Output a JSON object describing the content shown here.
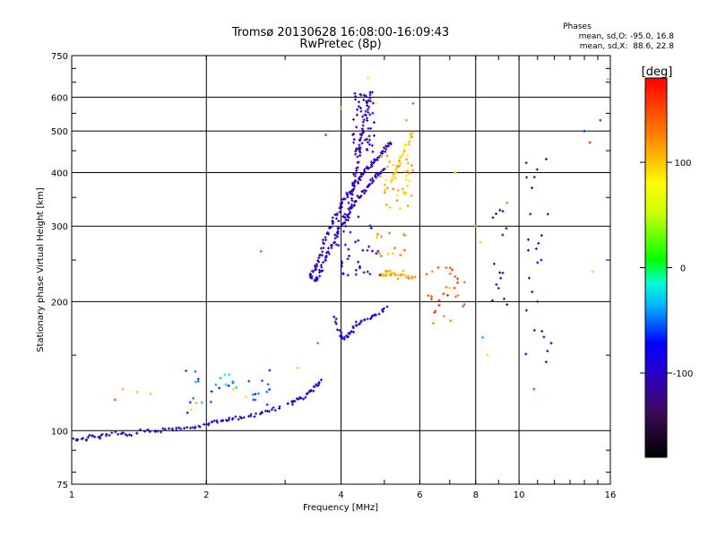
{
  "chart_data": {
    "type": "scatter",
    "title": "Tromsø 20130628 16:08:00-16:09:43",
    "subtitle": "RwPretec (8p)",
    "xlabel": "Frequency [MHz]",
    "ylabel": "Stationary phase Virtual Height [km]",
    "x_scale": "log",
    "y_scale": "log",
    "xlim": [
      1,
      16
    ],
    "ylim": [
      75,
      750
    ],
    "x_ticks": [
      1,
      2,
      4,
      6,
      8,
      10,
      16
    ],
    "x_tick_labels": [
      "1",
      "2",
      "4",
      "6",
      "8",
      "10",
      "16"
    ],
    "y_ticks": [
      75,
      100,
      200,
      300,
      400,
      500,
      600,
      750
    ],
    "y_tick_labels": [
      "75",
      "100",
      "200",
      "300",
      "400",
      "500",
      "600",
      "750"
    ],
    "grid": true,
    "colorbar": {
      "label": "[deg]",
      "range": [
        -180,
        180
      ],
      "ticks": [
        100,
        0,
        -100
      ],
      "tick_labels": [
        "100",
        "0",
        "-100"
      ]
    },
    "stats": {
      "header": "Phases",
      "line_o": "mean, sd,O: -95.0, 16.8",
      "line_x": "mean, sd,X:  88.6, 22.8"
    },
    "segments": [
      {
        "phase": -100,
        "points": [
          [
            1.0,
            96
          ],
          [
            1.05,
            95
          ],
          [
            1.1,
            97
          ],
          [
            1.15,
            96
          ],
          [
            1.2,
            98
          ],
          [
            1.28,
            99
          ],
          [
            1.35,
            98
          ],
          [
            1.45,
            100
          ],
          [
            1.55,
            99
          ],
          [
            1.65,
            101
          ],
          [
            1.75,
            101
          ],
          [
            1.85,
            102
          ],
          [
            1.95,
            103
          ],
          [
            2.05,
            104
          ],
          [
            2.15,
            105
          ],
          [
            2.25,
            106
          ],
          [
            2.35,
            107
          ],
          [
            2.5,
            108
          ],
          [
            2.65,
            110
          ],
          [
            2.8,
            112
          ],
          [
            2.95,
            113
          ]
        ]
      },
      {
        "phase": -95,
        "points": [
          [
            3.05,
            115
          ],
          [
            3.15,
            117
          ],
          [
            3.25,
            119
          ],
          [
            3.35,
            121
          ],
          [
            3.45,
            124
          ],
          [
            3.55,
            128
          ],
          [
            3.62,
            132
          ]
        ]
      },
      {
        "phase": -105,
        "points": [
          [
            3.42,
            225
          ],
          [
            3.45,
            232
          ],
          [
            3.5,
            240
          ],
          [
            3.56,
            250
          ],
          [
            3.62,
            262
          ],
          [
            3.68,
            276
          ],
          [
            3.75,
            292
          ],
          [
            3.82,
            305
          ],
          [
            3.9,
            318
          ],
          [
            3.98,
            330
          ],
          [
            4.05,
            342
          ],
          [
            4.12,
            352
          ],
          [
            4.2,
            362
          ],
          [
            4.28,
            372
          ],
          [
            4.36,
            382
          ],
          [
            4.44,
            392
          ],
          [
            4.52,
            402
          ],
          [
            4.6,
            410
          ],
          [
            4.7,
            420
          ],
          [
            4.8,
            430
          ],
          [
            4.9,
            440
          ],
          [
            5.0,
            452
          ],
          [
            5.1,
            462
          ],
          [
            5.2,
            470
          ]
        ]
      },
      {
        "phase": -100,
        "points": [
          [
            3.5,
            222
          ],
          [
            3.55,
            228
          ],
          [
            3.6,
            236
          ],
          [
            3.66,
            248
          ],
          [
            3.72,
            258
          ],
          [
            3.8,
            270
          ],
          [
            3.88,
            282
          ],
          [
            3.96,
            294
          ],
          [
            4.04,
            306
          ],
          [
            4.12,
            318
          ],
          [
            4.2,
            330
          ],
          [
            4.3,
            340
          ],
          [
            4.4,
            352
          ],
          [
            4.5,
            362
          ],
          [
            4.6,
            372
          ],
          [
            4.7,
            382
          ],
          [
            4.8,
            392
          ],
          [
            4.9,
            402
          ],
          [
            5.0,
            410
          ]
        ]
      },
      {
        "phase": -110,
        "points": [
          [
            4.1,
            300
          ],
          [
            4.15,
            320
          ],
          [
            4.2,
            345
          ],
          [
            4.25,
            370
          ],
          [
            4.3,
            395
          ],
          [
            4.35,
            420
          ],
          [
            4.4,
            450
          ],
          [
            4.45,
            480
          ],
          [
            4.5,
            510
          ],
          [
            4.55,
            540
          ],
          [
            4.6,
            570
          ],
          [
            4.65,
            600
          ],
          [
            4.7,
            625
          ]
        ]
      },
      {
        "phase": -100,
        "points": [
          [
            3.85,
            185
          ],
          [
            3.95,
            170
          ],
          [
            4.05,
            164
          ],
          [
            4.15,
            166
          ],
          [
            4.25,
            172
          ],
          [
            4.35,
            178
          ],
          [
            4.5,
            180
          ],
          [
            4.7,
            184
          ],
          [
            4.9,
            190
          ],
          [
            5.1,
            195
          ]
        ]
      },
      {
        "phase": 100,
        "points": [
          [
            5.2,
            380
          ],
          [
            5.3,
            400
          ],
          [
            5.4,
            420
          ],
          [
            5.5,
            440
          ],
          [
            5.6,
            460
          ],
          [
            5.7,
            480
          ],
          [
            5.75,
            500
          ]
        ]
      },
      {
        "phase": 110,
        "points": [
          [
            4.9,
            232
          ],
          [
            5.0,
            230
          ],
          [
            5.1,
            236
          ],
          [
            5.2,
            232
          ],
          [
            5.35,
            228
          ],
          [
            5.5,
            234
          ],
          [
            5.7,
            226
          ],
          [
            5.85,
            230
          ]
        ]
      }
    ],
    "points": [
      {
        "x": 1.25,
        "y": 118,
        "phase": 150
      },
      {
        "x": 1.3,
        "y": 125,
        "phase": 110
      },
      {
        "x": 1.4,
        "y": 123,
        "phase": 100
      },
      {
        "x": 1.5,
        "y": 122,
        "phase": 105
      },
      {
        "x": 1.85,
        "y": 112,
        "phase": 95
      },
      {
        "x": 1.9,
        "y": 116,
        "phase": 110
      },
      {
        "x": 2.1,
        "y": 128,
        "phase": -40
      },
      {
        "x": 2.2,
        "y": 135,
        "phase": -20
      },
      {
        "x": 2.3,
        "y": 125,
        "phase": 100
      },
      {
        "x": 2.45,
        "y": 120,
        "phase": 90
      },
      {
        "x": 2.55,
        "y": 118,
        "phase": -60
      },
      {
        "x": 2.65,
        "y": 262,
        "phase": 150
      },
      {
        "x": 3.2,
        "y": 140,
        "phase": 100
      },
      {
        "x": 3.55,
        "y": 160,
        "phase": 140
      },
      {
        "x": 3.7,
        "y": 490,
        "phase": 170
      },
      {
        "x": 4.0,
        "y": 565,
        "phase": 110
      },
      {
        "x": 4.6,
        "y": 665,
        "phase": 50
      },
      {
        "x": 4.8,
        "y": 580,
        "phase": 80
      },
      {
        "x": 5.3,
        "y": 400,
        "phase": 110
      },
      {
        "x": 5.6,
        "y": 530,
        "phase": 120
      },
      {
        "x": 5.8,
        "y": 580,
        "phase": -40
      },
      {
        "x": 6.4,
        "y": 235,
        "phase": 120
      },
      {
        "x": 6.6,
        "y": 240,
        "phase": 150
      },
      {
        "x": 7.0,
        "y": 215,
        "phase": 100
      },
      {
        "x": 7.2,
        "y": 400,
        "phase": 100
      },
      {
        "x": 6.5,
        "y": 190,
        "phase": 160
      },
      {
        "x": 6.8,
        "y": 185,
        "phase": 120
      },
      {
        "x": 7.5,
        "y": 195,
        "phase": 150
      },
      {
        "x": 8.0,
        "y": 300,
        "phase": 130
      },
      {
        "x": 8.2,
        "y": 275,
        "phase": 40
      },
      {
        "x": 8.3,
        "y": 165,
        "phase": -40
      },
      {
        "x": 8.5,
        "y": 150,
        "phase": 90
      },
      {
        "x": 8.8,
        "y": 245,
        "phase": -110
      },
      {
        "x": 9.0,
        "y": 215,
        "phase": -120
      },
      {
        "x": 9.2,
        "y": 325,
        "phase": -120
      },
      {
        "x": 9.4,
        "y": 340,
        "phase": 130
      },
      {
        "x": 10.4,
        "y": 390,
        "phase": -120
      },
      {
        "x": 10.6,
        "y": 320,
        "phase": -120
      },
      {
        "x": 10.8,
        "y": 125,
        "phase": 160
      },
      {
        "x": 11.0,
        "y": 200,
        "phase": -120
      },
      {
        "x": 11.5,
        "y": 430,
        "phase": -100
      },
      {
        "x": 11.6,
        "y": 320,
        "phase": -90
      },
      {
        "x": 11.8,
        "y": 160,
        "phase": -100
      },
      {
        "x": 14.0,
        "y": 500,
        "phase": -110
      },
      {
        "x": 14.4,
        "y": 470,
        "phase": 170
      },
      {
        "x": 14.6,
        "y": 235,
        "phase": 40
      },
      {
        "x": 15.2,
        "y": 530,
        "phase": -60
      },
      {
        "x": 15.8,
        "y": 660,
        "phase": 110
      }
    ],
    "clusters": [
      {
        "x": [
          4.25,
          4.75
        ],
        "y": [
          440,
          620
        ],
        "n": 50,
        "phase": -110
      },
      {
        "x": [
          3.9,
          4.9
        ],
        "y": [
          230,
          320
        ],
        "n": 40,
        "phase": -100
      },
      {
        "x": [
          4.9,
          5.8
        ],
        "y": [
          330,
          440
        ],
        "n": 40,
        "phase": 110
      },
      {
        "x": [
          4.8,
          5.6
        ],
        "y": [
          255,
          290
        ],
        "n": 14,
        "phase": 120
      },
      {
        "x": [
          6.2,
          7.6
        ],
        "y": [
          178,
          240
        ],
        "n": 24,
        "phase": 150
      },
      {
        "x": [
          8.7,
          9.4
        ],
        "y": [
          180,
          330
        ],
        "n": 12,
        "phase": -120
      },
      {
        "x": [
          10.3,
          11.7
        ],
        "y": [
          130,
          440
        ],
        "n": 20,
        "phase": -110
      },
      {
        "x": [
          1.8,
          2.8
        ],
        "y": [
          108,
          140
        ],
        "n": 30,
        "phase": -50
      }
    ]
  }
}
